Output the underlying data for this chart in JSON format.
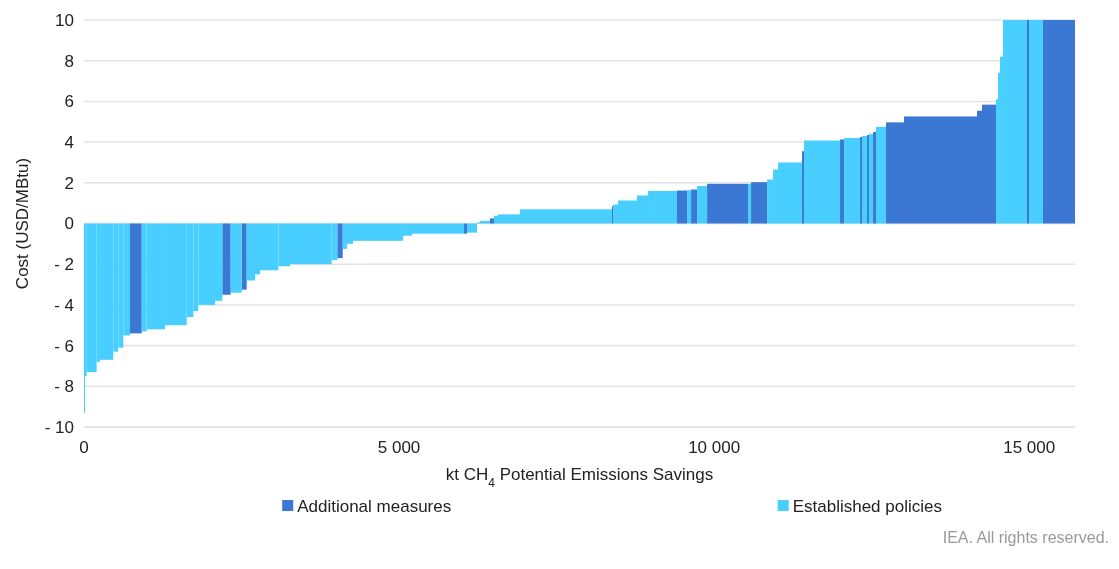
{
  "chart_data": {
    "type": "histogram",
    "ylabel": "Cost (USD/MBtu)",
    "xlabel": "kt CH$_{4}$ Potential Emissions Savings",
    "bins": [
      0,
      16,
      43,
      201,
      254,
      465,
      544,
      624,
      730,
      916,
      995,
      1285,
      1630,
      1735,
      1814,
      2079,
      2195,
      2328,
      2503,
      2582,
      2714,
      2793,
      3084,
      3269,
      3931,
      4020,
      4106,
      4174,
      4269,
      5063,
      5205,
      6031,
      6078,
      6237,
      6285,
      6443,
      6507,
      6570,
      6919,
      8379,
      8395,
      8475,
      8776,
      8951,
      9411,
      9570,
      9634,
      9729,
      9888,
      10538,
      10586,
      10840,
      10935,
      11014,
      11395,
      11427,
      11998,
      12062,
      12316,
      12347,
      12427,
      12458,
      12522,
      12569,
      12728,
      13013,
      14172,
      14251,
      14473,
      14505,
      14537,
      14585,
      14965,
      14997,
      15219,
      15727
    ],
    "series": [
      {
        "name": "Additional measures",
        "color": "#3b78d4",
        "values": [
          null,
          null,
          null,
          null,
          null,
          null,
          null,
          null,
          -5.4,
          null,
          null,
          null,
          null,
          null,
          null,
          null,
          -3.5,
          null,
          -3.25,
          null,
          null,
          null,
          null,
          null,
          null,
          -1.7,
          null,
          null,
          null,
          null,
          null,
          -0.5,
          null,
          null,
          null,
          0.25,
          null,
          null,
          null,
          0.85,
          null,
          null,
          null,
          null,
          1.62,
          null,
          1.67,
          null,
          1.95,
          null,
          2.03,
          null,
          null,
          null,
          3.55,
          null,
          4.13,
          null,
          4.25,
          null,
          4.35,
          null,
          4.5,
          null,
          4.97,
          5.26,
          5.54,
          5.84,
          null,
          null,
          null,
          null,
          10,
          null,
          10
        ]
      },
      {
        "name": "Established policies",
        "color": "#48cfff",
        "values": [
          -9.3,
          -7.5,
          -7.3,
          -6.8,
          -6.7,
          -6.3,
          -6.1,
          -5.5,
          null,
          -5.3,
          -5.2,
          -5.0,
          -4.6,
          -4.3,
          -4.0,
          -3.8,
          null,
          -3.4,
          null,
          -2.8,
          -2.5,
          -2.3,
          -2.1,
          -2.0,
          -1.8,
          null,
          -1.25,
          -1.0,
          -0.85,
          -0.6,
          -0.5,
          null,
          -0.45,
          0.05,
          0.13,
          null,
          0.38,
          0.45,
          0.7,
          null,
          0.93,
          1.13,
          1.38,
          1.6,
          null,
          1.64,
          null,
          1.84,
          null,
          1.95,
          null,
          2.16,
          2.65,
          3.0,
          null,
          4.08,
          null,
          4.2,
          null,
          4.3,
          null,
          4.4,
          null,
          4.75,
          null,
          null,
          null,
          null,
          6.1,
          7.4,
          8.2,
          10,
          null,
          10,
          null
        ]
      }
    ],
    "xlim": [
      0,
      15727
    ],
    "xticks": [
      0,
      {
        "value": 5000,
        "label": "5 000"
      },
      {
        "value": 10000,
        "label": "10 000"
      },
      {
        "value": 15000,
        "label": "15 000"
      }
    ],
    "ylim": [
      -10,
      10
    ],
    "yticks": [
      {
        "value": -10,
        "label": "- 10"
      },
      {
        "value": -8,
        "label": "- 8"
      },
      {
        "value": -6,
        "label": "- 6"
      },
      {
        "value": -4,
        "label": "- 4"
      },
      {
        "value": -2,
        "label": "- 2"
      },
      0,
      2,
      4,
      6,
      8,
      10
    ],
    "grid": "y",
    "legend": "bottom",
    "annotations": [
      "IEA. All rights reserved."
    ]
  }
}
